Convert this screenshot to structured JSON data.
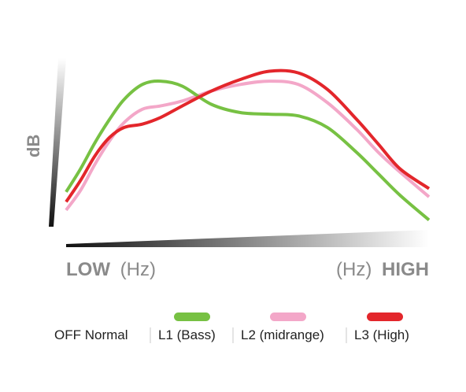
{
  "chart_data": {
    "type": "line",
    "ylabel": "dB",
    "x_low_label": {
      "strong": "LOW",
      "rest": "(Hz)"
    },
    "x_high_label": {
      "rest": "(Hz)",
      "strong": "HIGH"
    },
    "xlim": [
      0,
      10
    ],
    "ylim": [
      0,
      10
    ],
    "grid": false,
    "legend_placement": "bottom",
    "legend_prefix": "OFF Normal",
    "series": [
      {
        "name": "L1 (Bass)",
        "color": "#77c143",
        "x": [
          0,
          0.4,
          0.8,
          1.2,
          1.6,
          2.1,
          2.6,
          3.2,
          4.0,
          4.8,
          5.6,
          6.4,
          7.2,
          8.0,
          8.6,
          9.2,
          10
        ],
        "y": [
          2.2,
          3.6,
          5.2,
          6.6,
          7.8,
          8.7,
          8.9,
          8.6,
          7.5,
          7.0,
          6.9,
          6.8,
          6.1,
          4.6,
          3.3,
          2.0,
          0.5
        ]
      },
      {
        "name": "L2 (midrange)",
        "color": "#f3a7c8",
        "x": [
          0,
          0.4,
          0.8,
          1.2,
          1.6,
          2.1,
          2.6,
          3.2,
          4.0,
          4.8,
          5.6,
          6.4,
          7.2,
          8.0,
          8.6,
          9.2,
          10
        ],
        "y": [
          1.1,
          2.3,
          3.9,
          5.3,
          6.4,
          7.2,
          7.4,
          7.7,
          8.3,
          8.7,
          8.9,
          8.7,
          7.6,
          6.0,
          4.6,
          3.4,
          1.9
        ]
      },
      {
        "name": "L3 (High)",
        "color": "#e3262b",
        "x": [
          0,
          0.4,
          0.8,
          1.2,
          1.6,
          2.1,
          2.6,
          3.2,
          4.0,
          4.8,
          5.6,
          6.4,
          7.2,
          8.0,
          8.6,
          9.2,
          10
        ],
        "y": [
          1.6,
          2.9,
          4.4,
          5.5,
          6.1,
          6.3,
          6.7,
          7.4,
          8.3,
          9.0,
          9.5,
          9.4,
          8.4,
          6.6,
          5.1,
          3.6,
          2.4
        ]
      }
    ]
  }
}
